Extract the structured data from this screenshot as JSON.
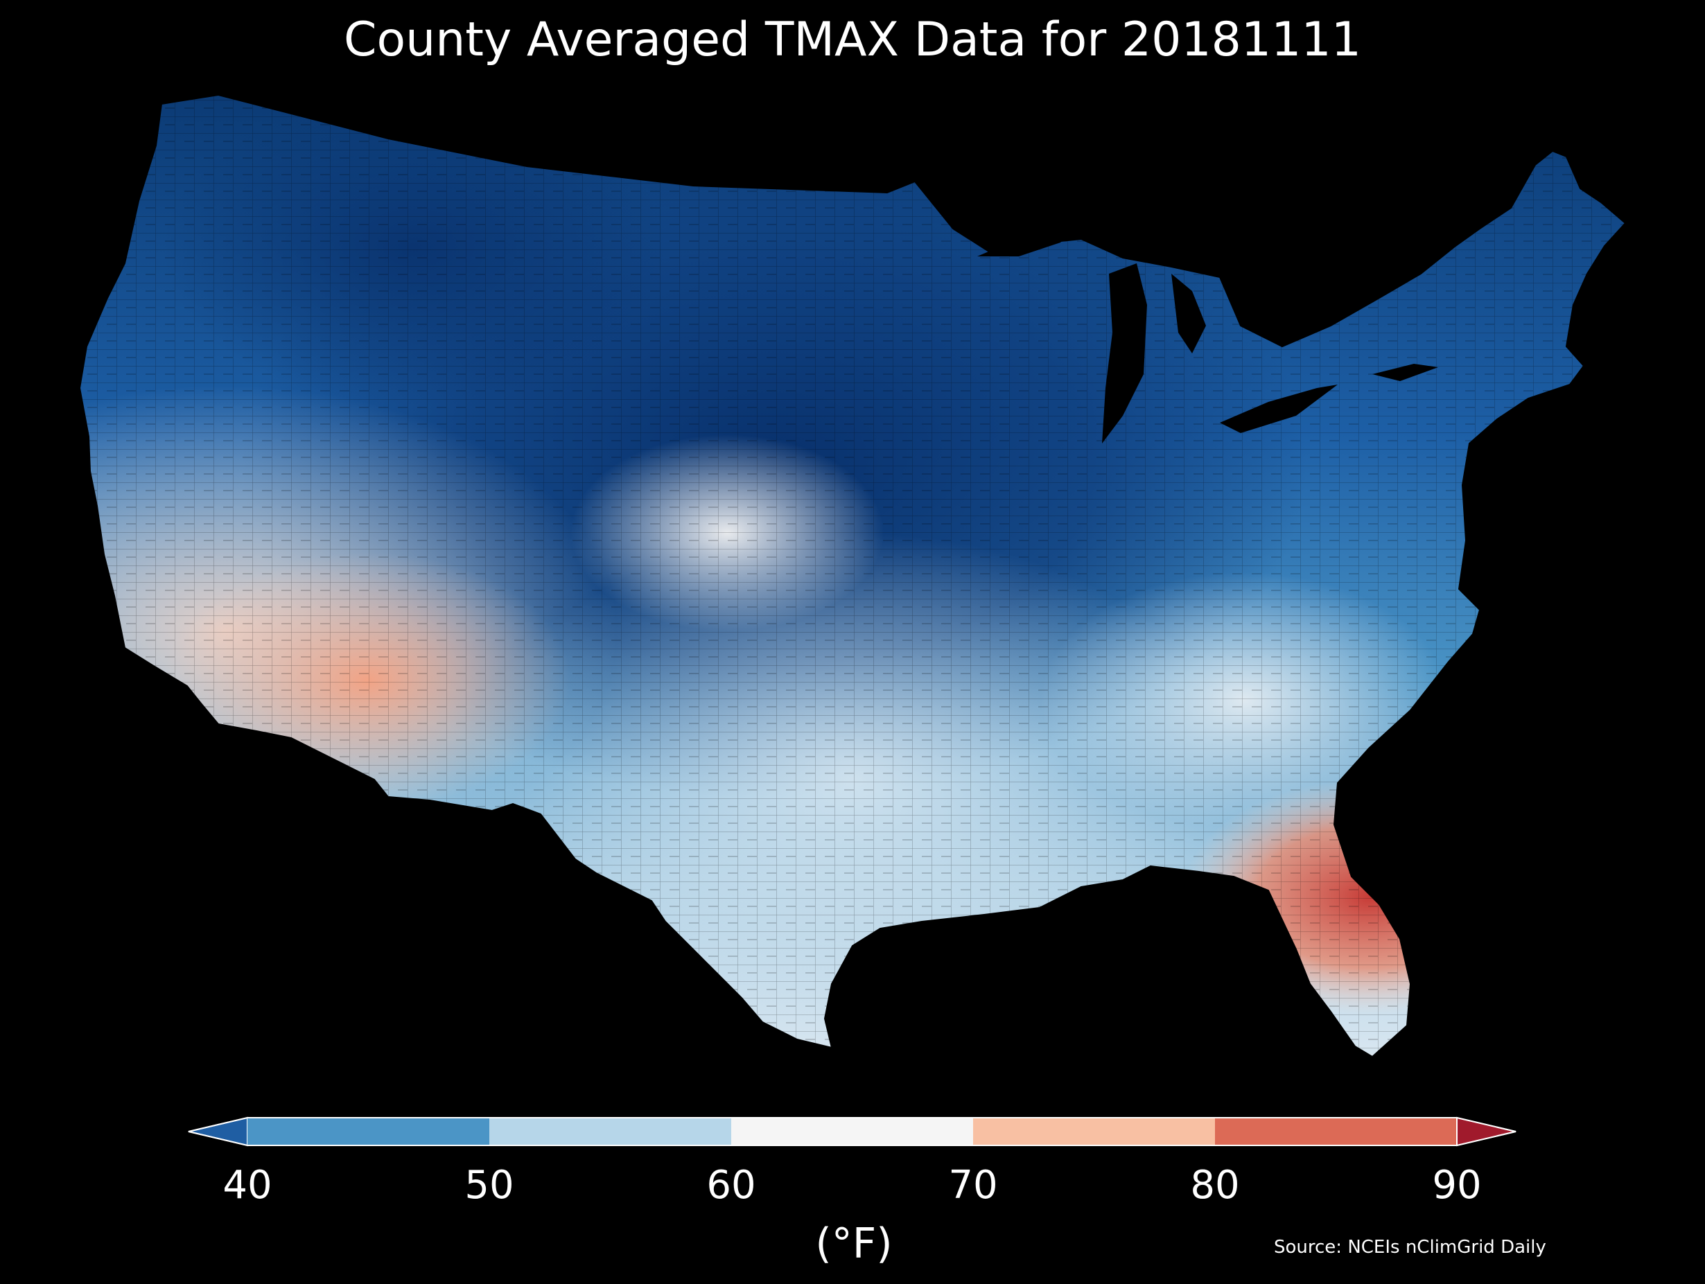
{
  "title": "County Averaged TMAX Data for 20181111",
  "source": "Source: NCEIs nClimGrid Daily",
  "colorbar": {
    "unit_label": "(°F)",
    "ticks": [
      "40",
      "50",
      "60",
      "70",
      "80",
      "90"
    ],
    "bins": [
      {
        "range": "<40",
        "color": "#1f5ea3"
      },
      {
        "range": "40-50",
        "color": "#4b95c6"
      },
      {
        "range": "50-60",
        "color": "#b6d6e9"
      },
      {
        "range": "60-70",
        "color": "#f5f5f5"
      },
      {
        "range": "70-80",
        "color": "#f8c0a3"
      },
      {
        "range": "80-90",
        "color": "#dc6a56"
      },
      {
        "range": ">90",
        "color": "#a01a2c"
      }
    ]
  },
  "map": {
    "region": "Contiguous United States",
    "colors": {
      "background": "#000000",
      "very_cold": "#08306b",
      "cold": "#1d5fa6",
      "cool": "#4b95c6",
      "mild": "#b6d6e9",
      "neutral": "#f0f0f0",
      "warm": "#f4b197",
      "hot": "#d0453d"
    }
  }
}
